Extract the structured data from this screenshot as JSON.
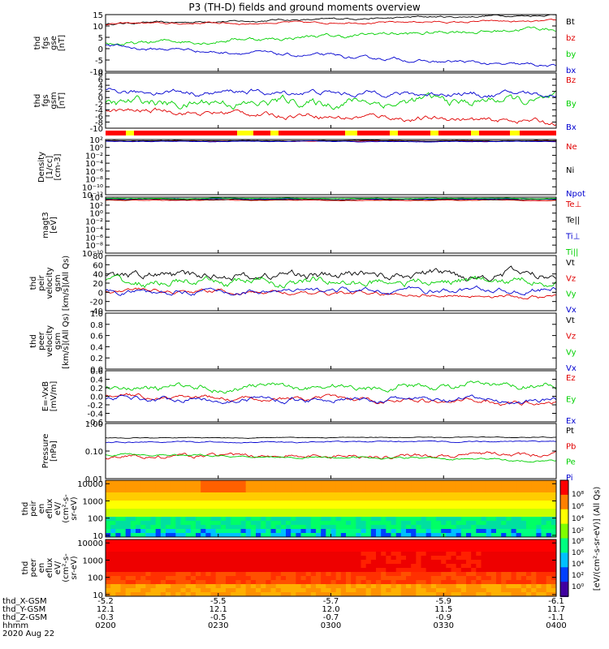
{
  "title": "P3 (TH-D) fields and ground moments overview",
  "colors": {
    "black": "#000000",
    "red": "#e00000",
    "green": "#00d000",
    "blue": "#0000d0",
    "yellow": "#ffff00",
    "mode_red": "#ff0000"
  },
  "chart_data": [
    {
      "id": "fgs-gse",
      "type": "line",
      "ylabel": [
        "thd",
        "fgs",
        "gse",
        "[nT]"
      ],
      "ylim": [
        -10,
        15
      ],
      "yticks": [
        "15",
        "10",
        "5",
        "0",
        "-5",
        "-10"
      ],
      "tickvals": [
        15,
        10,
        5,
        0,
        -5,
        -10
      ],
      "log": false,
      "series": [
        {
          "name": "Bt",
          "color": "black",
          "start": 11,
          "end": 15,
          "noise": 0.6
        },
        {
          "name": "bz",
          "color": "red",
          "start": 11,
          "end": 12,
          "noise": 0.6
        },
        {
          "name": "by",
          "color": "green",
          "start": 2,
          "end": 9,
          "noise": 1.2
        },
        {
          "name": "bx",
          "color": "blue",
          "start": 1,
          "end": -8,
          "noise": 1.0
        }
      ]
    },
    {
      "id": "fgs-gsm",
      "type": "line",
      "ylabel": [
        "thd",
        "fgs",
        "gsm",
        "[nT]"
      ],
      "ylim": [
        -10,
        8
      ],
      "yticks": [
        "8",
        "6",
        "4",
        "2",
        "0",
        "-2",
        "-4",
        "-6",
        "-8",
        "-10"
      ],
      "tickvals": [
        8,
        6,
        4,
        2,
        0,
        -2,
        -4,
        -6,
        -8,
        -10
      ],
      "log": false,
      "series": [
        {
          "name": "Bz",
          "color": "red",
          "start": -4,
          "end": -8,
          "noise": 1.2
        },
        {
          "name": "By",
          "color": "green",
          "start": -2,
          "end": -1,
          "noise": 2.0
        },
        {
          "name": "Bx",
          "color": "blue",
          "start": 2,
          "end": 1,
          "noise": 1.2
        }
      ]
    },
    {
      "id": "density",
      "type": "line",
      "ylabel": [
        "Density",
        "[1/cc]",
        "[cm-3]"
      ],
      "ylim": [
        -12,
        2
      ],
      "yticks": [
        "10²",
        "10⁰",
        "10⁻²",
        "10⁻⁴",
        "10⁻⁶",
        "10⁻⁸",
        "10⁻¹⁰",
        "10⁻¹²"
      ],
      "tickvals": [
        2,
        0,
        -2,
        -4,
        -6,
        -8,
        -10,
        -12
      ],
      "log": true,
      "series": [
        {
          "name": "Ne",
          "color": "red",
          "start": 1.6,
          "end": 1.6,
          "noise": 0.1
        },
        {
          "name": "Ni",
          "color": "black",
          "start": 1.7,
          "end": 1.7,
          "noise": 0.1
        },
        {
          "name": "Npot",
          "color": "blue",
          "start": 1.5,
          "end": 1.5,
          "noise": 0.1
        }
      ]
    },
    {
      "id": "temp",
      "type": "line",
      "ylabel": [
        "magt3",
        "[eV]"
      ],
      "ylim": [
        -10,
        4
      ],
      "yticks": [
        "10⁴",
        "10²",
        "10⁰",
        "10⁻²",
        "10⁻⁴",
        "10⁻⁶",
        "10⁻⁸",
        "10⁻¹⁰"
      ],
      "tickvals": [
        4,
        2,
        0,
        -2,
        -4,
        -6,
        -8,
        -10
      ],
      "log": true,
      "series": [
        {
          "name": "Te⊥",
          "color": "red",
          "start": 3.2,
          "end": 3.2,
          "noise": 0.1
        },
        {
          "name": "Te||",
          "color": "black",
          "start": 3.4,
          "end": 3.4,
          "noise": 0.1
        },
        {
          "name": "Ti⊥",
          "color": "blue",
          "start": 3.6,
          "end": 3.6,
          "noise": 0.1
        },
        {
          "name": "Ti||",
          "color": "green",
          "start": 3.7,
          "end": 3.7,
          "noise": 0.1
        }
      ]
    },
    {
      "id": "peir-vel",
      "type": "line",
      "ylabel": [
        "thd",
        "peir",
        "velocity",
        "gsm",
        "[km/s](All Qs)"
      ],
      "ylim": [
        -40,
        80
      ],
      "yticks": [
        "80",
        "60",
        "40",
        "20",
        "0",
        "-20",
        "-40"
      ],
      "tickvals": [
        80,
        60,
        40,
        20,
        0,
        -20,
        -40
      ],
      "log": false,
      "series": [
        {
          "name": "Vt",
          "color": "black",
          "start": 35,
          "end": 40,
          "noise": 12
        },
        {
          "name": "Vz",
          "color": "red",
          "start": 5,
          "end": -10,
          "noise": 6
        },
        {
          "name": "Vy",
          "color": "green",
          "start": 20,
          "end": 25,
          "noise": 12
        },
        {
          "name": "Vx",
          "color": "blue",
          "start": 0,
          "end": 5,
          "noise": 8
        }
      ]
    },
    {
      "id": "peer-vel",
      "type": "line",
      "ylabel": [
        "thd",
        "peer",
        "velocity",
        "gsm",
        "[km/s](All Qs)"
      ],
      "ylim": [
        0,
        1
      ],
      "yticks": [
        "1.0",
        "0.8",
        "0.6",
        "0.4",
        "0.2",
        "0.0"
      ],
      "tickvals": [
        1,
        0.8,
        0.6,
        0.4,
        0.2,
        0
      ],
      "log": false,
      "series": [
        {
          "name": "Vt",
          "color": "black",
          "hidden": true
        },
        {
          "name": "Vz",
          "color": "red",
          "hidden": true
        },
        {
          "name": "Vy",
          "color": "green",
          "hidden": true
        },
        {
          "name": "Vx",
          "color": "blue",
          "hidden": true
        }
      ]
    },
    {
      "id": "efield",
      "type": "line",
      "ylabel": [
        "E=-VxB",
        "[mV/m]"
      ],
      "ylim": [
        -0.6,
        0.6
      ],
      "yticks": [
        "0.6",
        "0.4",
        "0.2",
        "0.0",
        "-0.2",
        "-0.4",
        "-0.6"
      ],
      "tickvals": [
        0.6,
        0.4,
        0.2,
        0,
        -0.2,
        -0.4,
        -0.6
      ],
      "log": false,
      "series": [
        {
          "name": "Ez",
          "color": "red",
          "start": 0,
          "end": -0.15,
          "noise": 0.07
        },
        {
          "name": "Ey",
          "color": "green",
          "start": 0.2,
          "end": 0.25,
          "noise": 0.1
        },
        {
          "name": "Ex",
          "color": "blue",
          "start": -0.05,
          "end": -0.1,
          "noise": 0.08
        }
      ]
    },
    {
      "id": "pressure",
      "type": "line",
      "ylabel": [
        "Pressure",
        "[nPa]"
      ],
      "ylim": [
        -2,
        0
      ],
      "yticks": [
        "1.00",
        "0.10",
        "0.01"
      ],
      "tickvals": [
        0,
        -1,
        -2
      ],
      "log": true,
      "series": [
        {
          "name": "Pt",
          "color": "black",
          "start": -0.52,
          "end": -0.5,
          "noise": 0.02
        },
        {
          "name": "Pb",
          "color": "red",
          "start": -1.2,
          "end": -1.15,
          "noise": 0.1
        },
        {
          "name": "Pe",
          "color": "green",
          "start": -1.1,
          "end": -1.35,
          "noise": 0.05
        },
        {
          "name": "Pi",
          "color": "blue",
          "start": -0.68,
          "end": -0.65,
          "noise": 0.03
        }
      ]
    },
    {
      "id": "peir-en",
      "type": "heatmap",
      "ylabel": [
        "thd",
        "peir",
        "en",
        "eflux",
        "eV/",
        "(cm²-s-",
        "sr-eV)"
      ],
      "yticks": [
        "10000",
        "1000",
        "100",
        "10"
      ],
      "tickvals": [
        4,
        3,
        2,
        1
      ],
      "log": true
    },
    {
      "id": "peer-en",
      "type": "heatmap",
      "ylabel": [
        "thd",
        "peer",
        "en",
        "eflux",
        "eV/",
        "(cm²-s-",
        "sr-eV)"
      ],
      "yticks": [
        "10000",
        "1000",
        "100",
        "10"
      ],
      "tickvals": [
        4,
        3,
        2,
        1
      ],
      "log": true
    }
  ],
  "colorbar": {
    "label": "[eV/(cm²-s-sr-eV)] (All Qs)",
    "ticks1": [
      "10⁸",
      "10⁶",
      "10⁴",
      "10²"
    ],
    "ticks2": [
      "10⁸",
      "10⁶",
      "10⁴",
      "10²",
      "10⁰"
    ]
  },
  "x_axis": {
    "row_labels": [
      "thd_X-GSM",
      "thd_Y-GSM",
      "thd_Z-GSM",
      "hhmm",
      "2020 Aug 22"
    ],
    "columns": [
      {
        "x_gsm": "-5.2",
        "y_gsm": "12.1",
        "z_gsm": "-0.3",
        "hhmm": "0200"
      },
      {
        "x_gsm": "-5.5",
        "y_gsm": "12.1",
        "z_gsm": "-0.5",
        "hhmm": "0230"
      },
      {
        "x_gsm": "-5.7",
        "y_gsm": "12.0",
        "z_gsm": "-0.7",
        "hhmm": "0300"
      },
      {
        "x_gsm": "-5.9",
        "y_gsm": "11.5",
        "z_gsm": "-0.9",
        "hhmm": "0330"
      },
      {
        "x_gsm": "-6.1",
        "y_gsm": "11.7",
        "z_gsm": "-1.1",
        "hhmm": "0400"
      }
    ]
  }
}
